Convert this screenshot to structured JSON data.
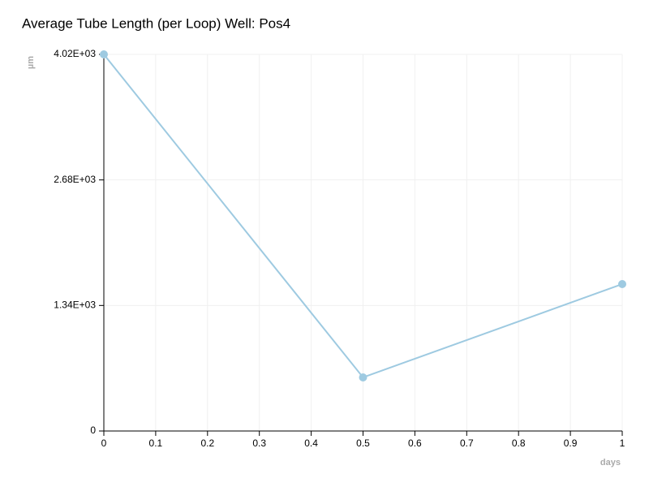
{
  "chart_data": {
    "type": "line",
    "title": "Average Tube Length (per Loop) Well: Pos4",
    "y_label": "µm",
    "x_label": "days",
    "x": [
      0,
      0.5,
      1
    ],
    "values": [
      4020,
      572,
      1568
    ],
    "color": "#9ecae1",
    "xlim": [
      0,
      1
    ],
    "xticks": [
      0,
      0.1,
      0.2,
      0.3,
      0.4,
      0.5,
      0.6,
      0.7,
      0.8,
      0.9,
      1
    ],
    "ylim": [
      0,
      4020
    ],
    "yticks": [
      0,
      {
        "value": 1340,
        "label": "1.34E+03"
      },
      {
        "value": 2680,
        "label": "2.68E+03"
      },
      {
        "value": 4020,
        "label": "4.02E+03"
      }
    ],
    "grid": true
  }
}
